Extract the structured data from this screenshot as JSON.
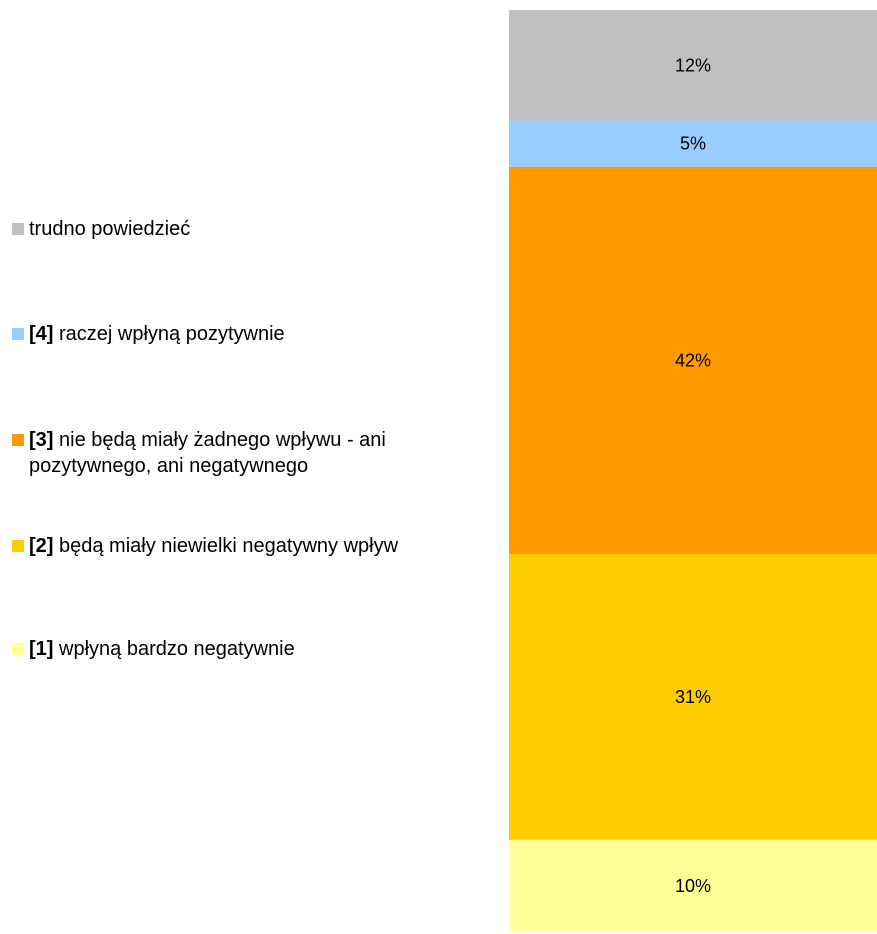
{
  "chart_data": {
    "type": "bar",
    "stacked": true,
    "categories": [
      ""
    ],
    "series": [
      {
        "name": "[1] wpłyną bardzo negatywnie",
        "values": [
          10
        ],
        "color": "#FFFF99"
      },
      {
        "name": "[2] będą miały niewielki negatywny wpływ",
        "values": [
          31
        ],
        "color": "#FFCC00"
      },
      {
        "name": "[3] nie będą miały żadnego wpływu - ani pozytywnego, ani negatywnego",
        "values": [
          42
        ],
        "color": "#FF9900"
      },
      {
        "name": "[4] raczej wpłyną pozytywnie",
        "values": [
          5
        ],
        "color": "#99CCFF"
      },
      {
        "name": "trudno powiedzieć",
        "values": [
          12
        ],
        "color": "#C0C0C0"
      }
    ],
    "data_labels": [
      "10%",
      "31%",
      "42%",
      "5%",
      "12%"
    ],
    "legend_position": "left",
    "grid": false
  },
  "legend": [
    {
      "code": "",
      "text": "trudno powiedzieć",
      "color": "#C0C0C0"
    },
    {
      "code": "[4]",
      "text": " raczej wpłyną pozytywnie",
      "color": "#99CCFF"
    },
    {
      "code": "[3]",
      "text": " nie będą miały żadnego wpływu - ani pozytywnego, ani negatywnego",
      "color": "#FF9900"
    },
    {
      "code": "[2]",
      "text": " będą miały niewielki negatywny wpływ",
      "color": "#FFCC00"
    },
    {
      "code": "[1]",
      "text": " wpłyną bardzo negatywnie",
      "color": "#FFFF99"
    }
  ]
}
